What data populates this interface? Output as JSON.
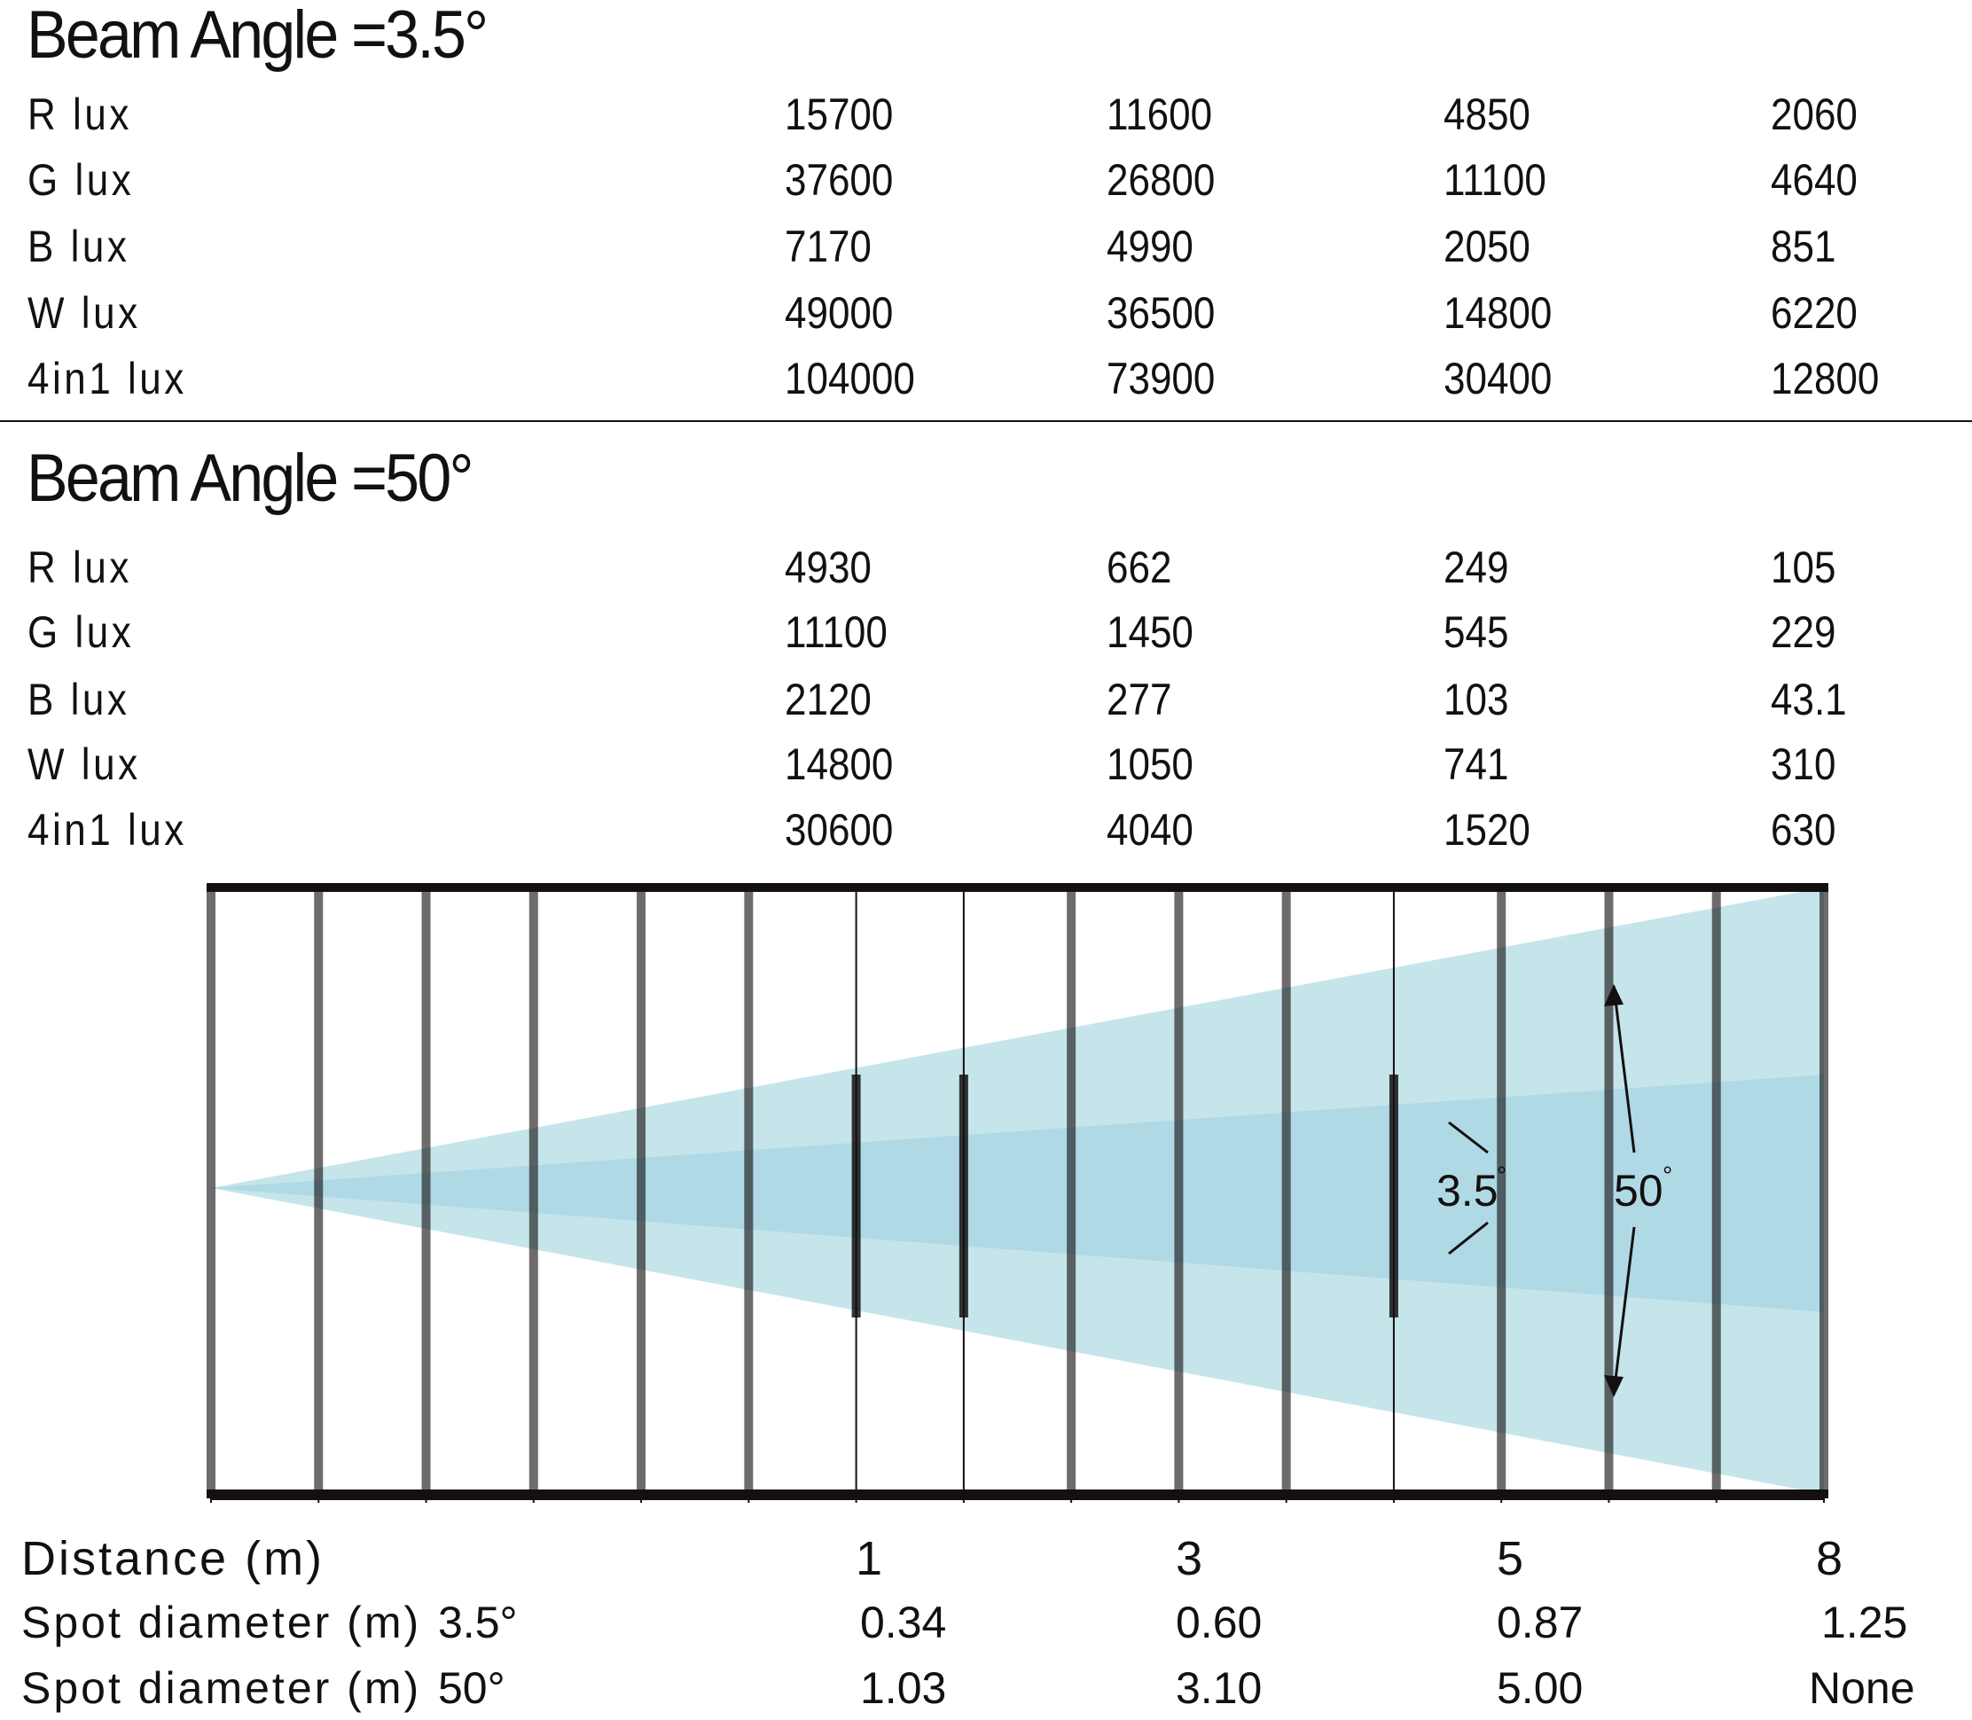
{
  "sections": [
    {
      "title": "Beam Angle =3.5°",
      "rows": [
        {
          "label": "R lux",
          "values": [
            "15700",
            "11600",
            "4850",
            "2060"
          ]
        },
        {
          "label": "G lux",
          "values": [
            "37600",
            "26800",
            "11100",
            "4640"
          ]
        },
        {
          "label": "B lux",
          "values": [
            "7170",
            "4990",
            "2050",
            "851"
          ]
        },
        {
          "label": "W lux",
          "values": [
            "49000",
            "36500",
            "14800",
            "6220"
          ]
        },
        {
          "label": "4in1 lux",
          "values": [
            "104000",
            "73900",
            "30400",
            "12800"
          ]
        }
      ]
    },
    {
      "title": "Beam Angle =50°",
      "rows": [
        {
          "label": "R lux",
          "values": [
            "4930",
            "662",
            "249",
            "105"
          ]
        },
        {
          "label": "G lux",
          "values": [
            "11100",
            "1450",
            "545",
            "229"
          ]
        },
        {
          "label": "B lux",
          "values": [
            "2120",
            "277",
            "103",
            "43.1"
          ]
        },
        {
          "label": "W lux",
          "values": [
            "14800",
            "1050",
            "741",
            "310"
          ]
        },
        {
          "label": "4in1 lux",
          "values": [
            "30600",
            "4040",
            "1520",
            "630"
          ]
        }
      ]
    }
  ],
  "diagram": {
    "inner_label": "3.5",
    "outer_label": "50",
    "degree_symbol": "°",
    "colors": {
      "outer_beam": "#c5e5eb",
      "inner_beam": "#afdae5",
      "lines": "#141010"
    }
  },
  "bottom": {
    "distance_label": "Distance (m)",
    "distances": [
      "1",
      "3",
      "5",
      "8"
    ],
    "spot_label": "Spot diameter (m)",
    "spot_rows": [
      {
        "angle": "3.5°",
        "values": [
          "0.34",
          "0.60",
          "0.87",
          "1.25"
        ]
      },
      {
        "angle": "50°",
        "values": [
          "1.03",
          "3.10",
          "5.00",
          "None"
        ]
      }
    ]
  }
}
